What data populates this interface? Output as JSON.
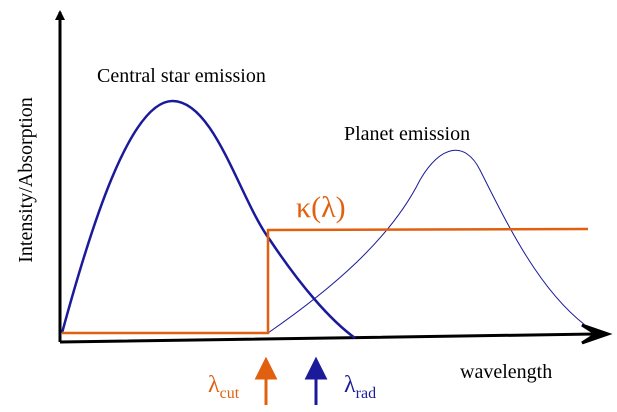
{
  "axes": {
    "y_label": "Intensity/Absorption",
    "x_label": "wavelength"
  },
  "curves": {
    "star": "Central star emission",
    "planet": "Planet emission",
    "absorption": "κ(λ)"
  },
  "markers": [
    {
      "symbol": "λ",
      "subscript": "cut"
    },
    {
      "symbol": "λ",
      "subscript": "rad"
    }
  ]
}
